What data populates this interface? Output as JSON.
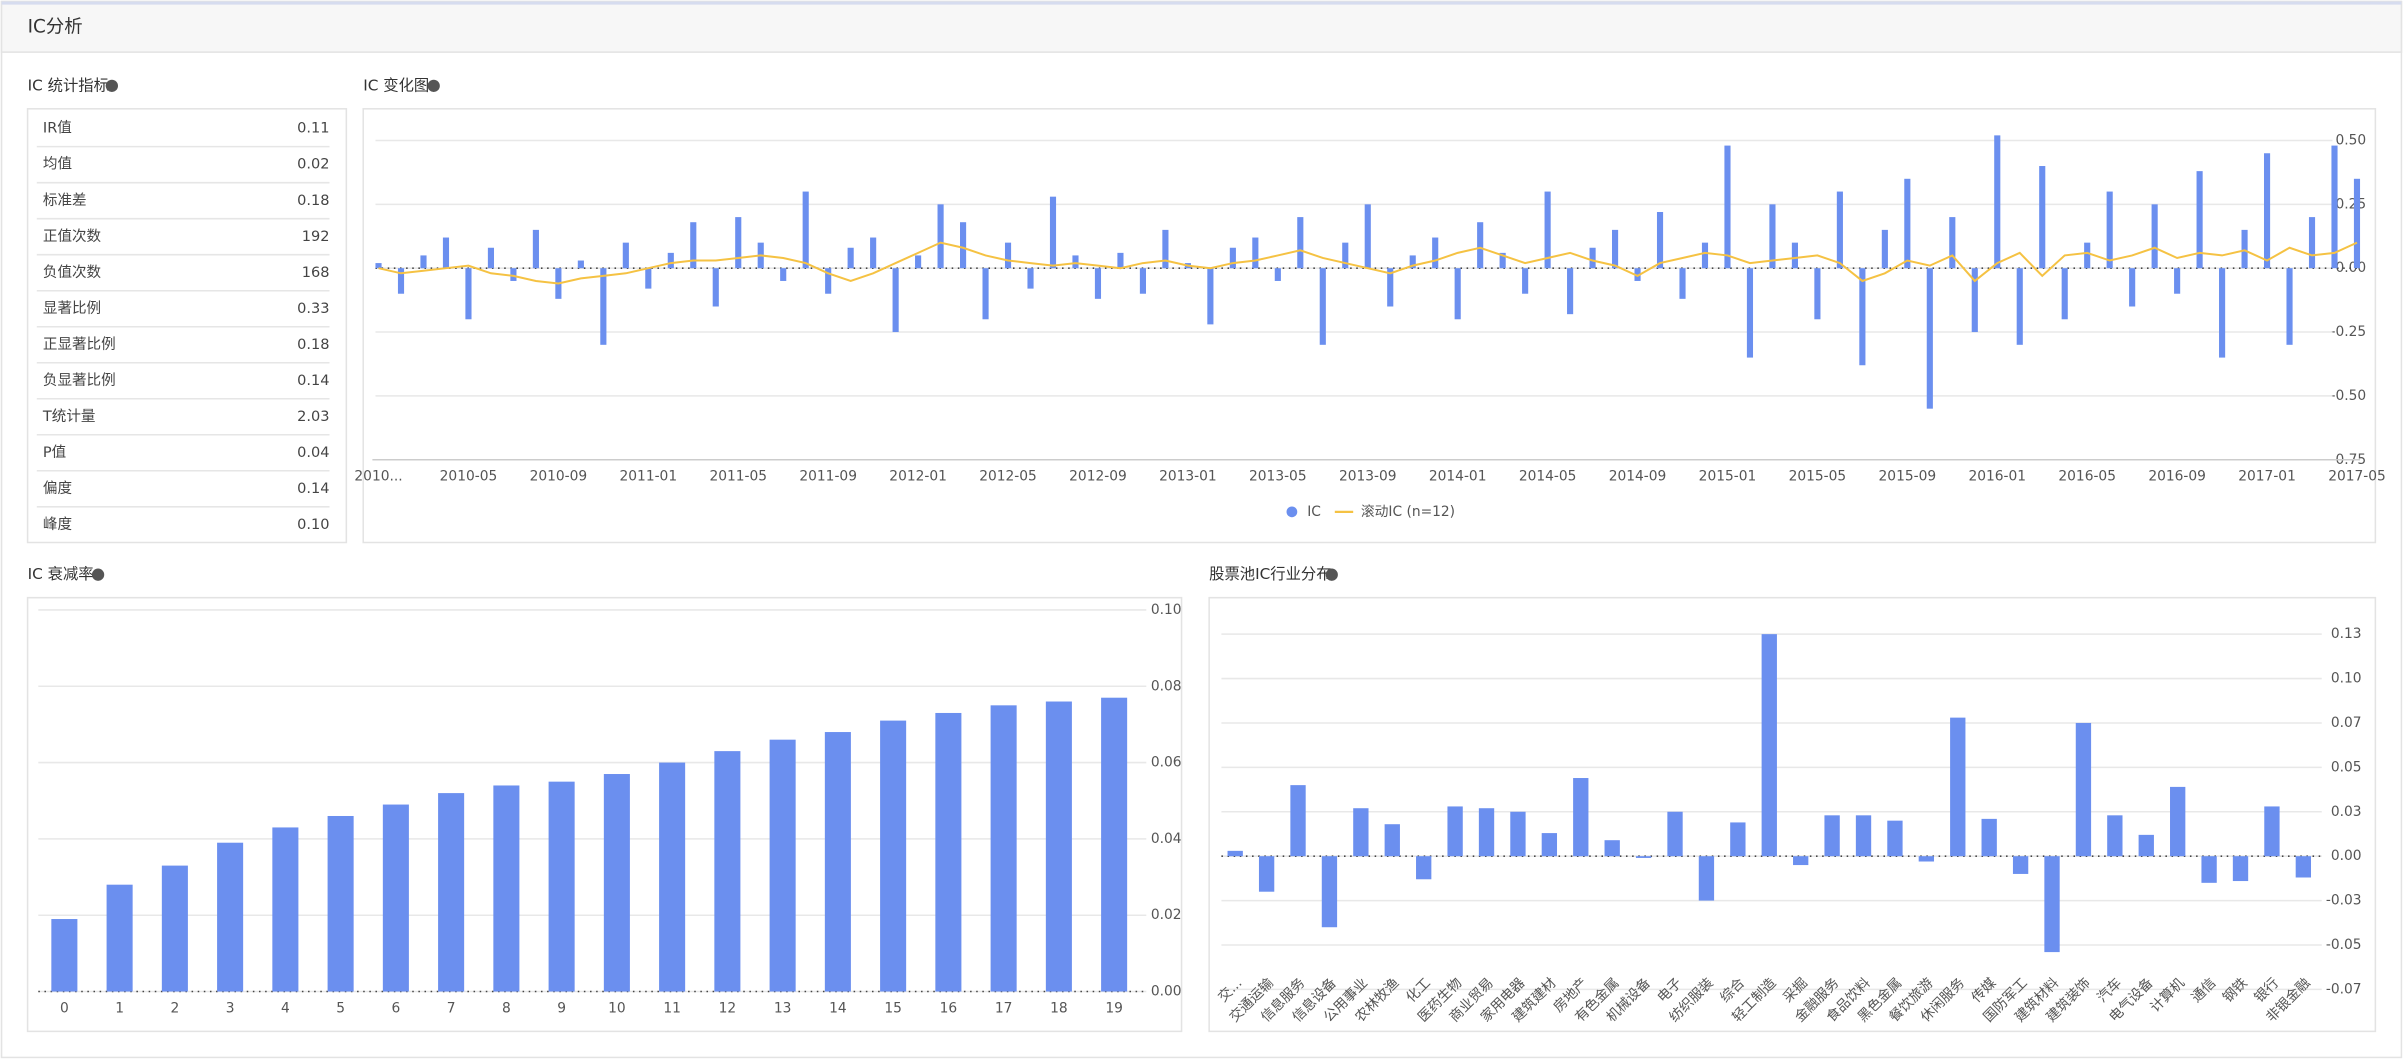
{
  "header": {
    "title": "IC分析"
  },
  "stats": {
    "title": "IC 统计指标",
    "rows": [
      [
        "IR值",
        "0.11"
      ],
      [
        "均值",
        "0.02"
      ],
      [
        "标准差",
        "0.18"
      ],
      [
        "正值次数",
        "192"
      ],
      [
        "负值次数",
        "168"
      ],
      [
        "显著比例",
        "0.33"
      ],
      [
        "正显著比例",
        "0.18"
      ],
      [
        "负显著比例",
        "0.14"
      ],
      [
        "T统计量",
        "2.03"
      ],
      [
        "P值",
        "0.04"
      ],
      [
        "偏度",
        "0.14"
      ],
      [
        "峰度",
        "0.10"
      ]
    ]
  },
  "chart_data": [
    {
      "type": "combo",
      "title": "IC 变化图",
      "categories": [
        "2010...",
        null,
        null,
        null,
        "2010-05",
        null,
        null,
        null,
        "2010-09",
        null,
        null,
        null,
        "2011-01",
        null,
        null,
        null,
        "2011-05",
        null,
        null,
        null,
        "2011-09",
        null,
        null,
        null,
        "2012-01",
        null,
        null,
        null,
        "2012-05",
        null,
        null,
        null,
        "2012-09",
        null,
        null,
        null,
        "2013-01",
        null,
        null,
        null,
        "2013-05",
        null,
        null,
        null,
        "2013-09",
        null,
        null,
        null,
        "2014-01",
        null,
        null,
        null,
        "2014-05",
        null,
        null,
        null,
        "2014-09",
        null,
        null,
        null,
        "2015-01",
        null,
        null,
        null,
        "2015-05",
        null,
        null,
        null,
        "2015-09",
        null,
        null,
        null,
        "2016-01",
        null,
        null,
        null,
        "2016-05",
        null,
        null,
        null,
        "2016-09",
        null,
        null,
        null,
        "2017-01",
        null,
        null,
        null,
        "2017-05"
      ],
      "series": [
        {
          "name": "IC",
          "type": "bar",
          "color": "#6b8fef",
          "values": [
            0.02,
            -0.1,
            0.05,
            0.12,
            -0.2,
            0.08,
            -0.05,
            0.15,
            -0.12,
            0.03,
            -0.3,
            0.1,
            -0.08,
            0.06,
            0.18,
            -0.15,
            0.2,
            0.1,
            -0.05,
            0.3,
            -0.1,
            0.08,
            0.12,
            -0.25,
            0.05,
            0.25,
            0.18,
            -0.2,
            0.1,
            -0.08,
            0.28,
            0.05,
            -0.12,
            0.06,
            -0.1,
            0.15,
            0.02,
            -0.22,
            0.08,
            0.12,
            -0.05,
            0.2,
            -0.3,
            0.1,
            0.25,
            -0.15,
            0.05,
            0.12,
            -0.2,
            0.18,
            0.06,
            -0.1,
            0.3,
            -0.18,
            0.08,
            0.15,
            -0.05,
            0.22,
            -0.12,
            0.1,
            0.48,
            -0.35,
            0.25,
            0.1,
            -0.2,
            0.3,
            -0.38,
            0.15,
            0.35,
            -0.55,
            0.2,
            -0.25,
            0.52,
            -0.3,
            0.4,
            -0.2,
            0.1,
            0.3,
            -0.15,
            0.25,
            -0.1,
            0.38,
            -0.35,
            0.15,
            0.45,
            -0.3,
            0.2,
            0.48,
            0.35
          ]
        },
        {
          "name": "滚动IC (n=12)",
          "type": "line",
          "color": "#f5c243",
          "values": [
            0,
            -0.02,
            -0.01,
            0,
            0.01,
            -0.02,
            -0.03,
            -0.05,
            -0.06,
            -0.04,
            -0.03,
            -0.02,
            0,
            0.02,
            0.03,
            0.03,
            0.04,
            0.05,
            0.04,
            0.02,
            -0.02,
            -0.05,
            -0.02,
            0.02,
            0.06,
            0.1,
            0.08,
            0.05,
            0.03,
            0.02,
            0.01,
            0.02,
            0.01,
            0,
            0.02,
            0.03,
            0.01,
            0,
            0.02,
            0.03,
            0.05,
            0.07,
            0.04,
            0.02,
            0,
            -0.02,
            0.01,
            0.03,
            0.06,
            0.08,
            0.05,
            0.02,
            0.04,
            0.06,
            0.03,
            0.01,
            -0.03,
            0.02,
            0.04,
            0.06,
            0.05,
            0.02,
            0.03,
            0.04,
            0.05,
            0.02,
            -0.05,
            -0.02,
            0.03,
            0.01,
            0.05,
            -0.05,
            0.02,
            0.06,
            -0.03,
            0.05,
            0.06,
            0.03,
            0.05,
            0.08,
            0.04,
            0.06,
            0.05,
            0.07,
            0.03,
            0.08,
            0.05,
            0.06,
            0.1
          ]
        }
      ],
      "ylim": [
        -0.75,
        0.6
      ],
      "yticks": [
        {
          "value": 0.5,
          "label": "0.50"
        },
        {
          "value": 0.25,
          "label": "0.25"
        },
        {
          "value": 0,
          "label": "0.00"
        },
        {
          "value": -0.25,
          "label": "-0.25"
        },
        {
          "value": -0.5,
          "label": "-0.50"
        },
        {
          "value": -0.75,
          "label": "-0.75"
        }
      ],
      "grid": true
    },
    {
      "type": "bar",
      "title": "IC 衰减率",
      "color": "#6b8fef",
      "categories": [
        "0",
        "1",
        "2",
        "3",
        "4",
        "5",
        "6",
        "7",
        "8",
        "9",
        "10",
        "11",
        "12",
        "13",
        "14",
        "15",
        "16",
        "17",
        "18",
        "19"
      ],
      "values": [
        0.019,
        0.028,
        0.033,
        0.039,
        0.043,
        0.046,
        0.049,
        0.052,
        0.054,
        0.055,
        0.057,
        0.06,
        0.063,
        0.066,
        0.068,
        0.071,
        0.073,
        0.075,
        0.076,
        0.077
      ],
      "ylim": [
        0,
        0.1
      ],
      "yticks": [
        {
          "value": 0,
          "label": "0.00"
        },
        {
          "value": 0.02,
          "label": "0.02"
        },
        {
          "value": 0.04,
          "label": "0.04"
        },
        {
          "value": 0.06,
          "label": "0.06"
        },
        {
          "value": 0.08,
          "label": "0.08"
        },
        {
          "value": 0.1,
          "label": "0.10"
        }
      ],
      "grid": true
    },
    {
      "type": "bar",
      "title": "股票池IC行业分布",
      "color": "#6b8fef",
      "categories": [
        "交...",
        "交通运输",
        "信息服务",
        "信息设备",
        "公用事业",
        "农林牧渔",
        "化工",
        "医药生物",
        "商业贸易",
        "家用电器",
        "建筑建材",
        "房地产",
        "有色金属",
        "机械设备",
        "电子",
        "纺织服装",
        "综合",
        "轻工制造",
        "采掘",
        "金融服务",
        "食品饮料",
        "黑色金属",
        "餐饮旅游",
        "休闲服务",
        "传媒",
        "国防军工",
        "建筑材料",
        "建筑装饰",
        "汽车",
        "电气设备",
        "计算机",
        "通信",
        "钢铁",
        "银行",
        "非银金融"
      ],
      "values": [
        0.003,
        -0.02,
        0.04,
        -0.04,
        0.027,
        0.018,
        -0.013,
        0.028,
        0.027,
        0.025,
        0.013,
        0.044,
        0.009,
        -0.001,
        0.025,
        -0.025,
        0.019,
        0.125,
        -0.005,
        0.023,
        0.023,
        0.02,
        -0.003,
        0.078,
        0.021,
        -0.01,
        -0.054,
        0.075,
        0.023,
        0.012,
        0.039,
        -0.015,
        -0.014,
        0.028,
        -0.012
      ],
      "ylim": [
        -0.09,
        0.13
      ],
      "yticks": [
        {
          "value": 0.125,
          "label": "0.13"
        },
        {
          "value": 0.1,
          "label": "0.10"
        },
        {
          "value": 0.075,
          "label": "0.07"
        },
        {
          "value": 0.05,
          "label": "0.05"
        },
        {
          "value": 0.025,
          "label": "0.03"
        },
        {
          "value": 0,
          "label": "0.00"
        },
        {
          "value": -0.025,
          "label": "-0.03"
        },
        {
          "value": -0.05,
          "label": "-0.05"
        },
        {
          "value": -0.075,
          "label": "-0.07"
        }
      ],
      "grid": true
    }
  ]
}
